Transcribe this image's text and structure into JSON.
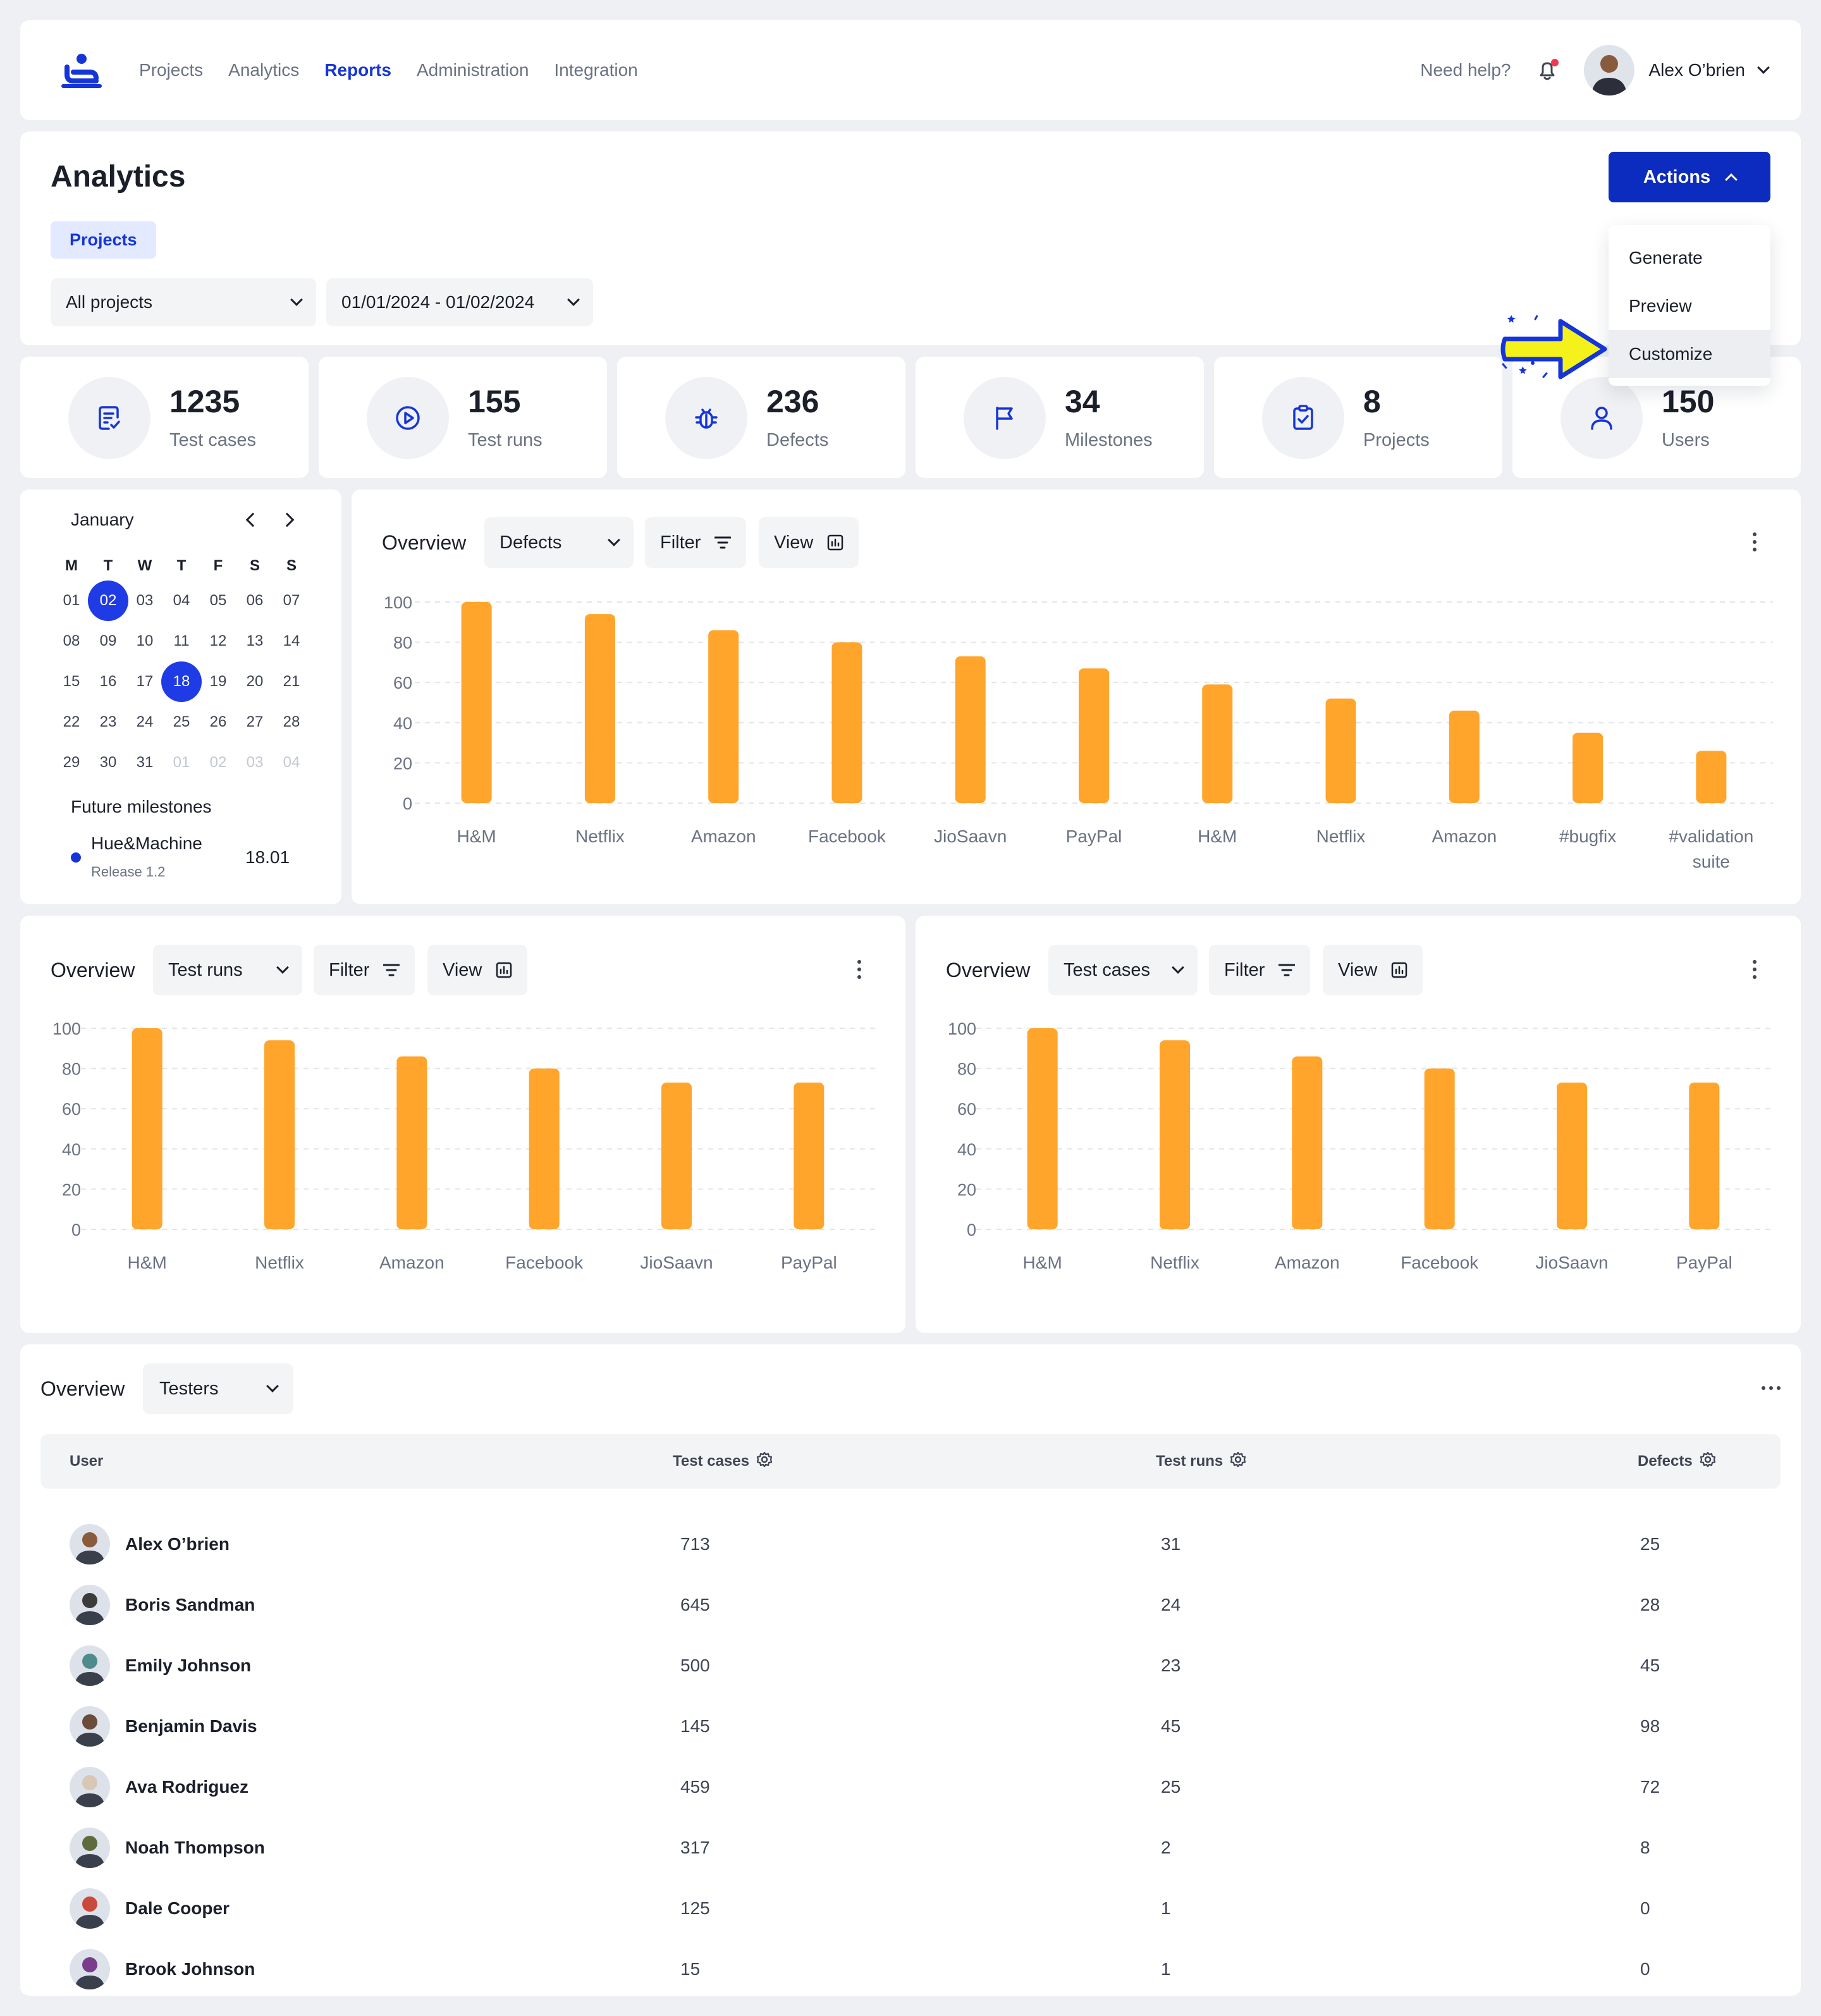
{
  "nav": {
    "links": [
      "Projects",
      "Analytics",
      "Reports",
      "Administration",
      "Integration"
    ],
    "active": "Reports",
    "help": "Need help?",
    "user": "Alex O’brien"
  },
  "header": {
    "title": "Analytics",
    "tag": "Projects",
    "project_select": "All projects",
    "date_range": "01/01/2024 - 01/02/2024",
    "actions_label": "Actions",
    "actions_menu": [
      "Generate",
      "Preview",
      "Customize"
    ],
    "actions_highlighted": "Customize"
  },
  "stats": [
    {
      "value": "1235",
      "label": "Test cases",
      "icon": "test-case-icon"
    },
    {
      "value": "155",
      "label": "Test runs",
      "icon": "play-icon"
    },
    {
      "value": "236",
      "label": "Defects",
      "icon": "bug-icon"
    },
    {
      "value": "34",
      "label": "Milestones",
      "icon": "flag-icon"
    },
    {
      "value": "8",
      "label": "Projects",
      "icon": "clipboard-check-icon"
    },
    {
      "value": "150",
      "label": "Users",
      "icon": "user-icon"
    }
  ],
  "calendar": {
    "month": "January",
    "weekdays": [
      "M",
      "T",
      "W",
      "T",
      "F",
      "S",
      "S"
    ],
    "days": [
      "01",
      "02",
      "03",
      "04",
      "05",
      "06",
      "07",
      "08",
      "09",
      "10",
      "11",
      "12",
      "13",
      "14",
      "15",
      "16",
      "17",
      "18",
      "19",
      "20",
      "21",
      "22",
      "23",
      "24",
      "25",
      "26",
      "27",
      "28",
      "29",
      "30",
      "31",
      "01",
      "02",
      "03",
      "04"
    ],
    "dim_from_index": 31,
    "selected": [
      "02",
      "18"
    ],
    "milestones_title": "Future milestones",
    "milestone_name": "Hue&Machine",
    "milestone_sub": "Release 1.2",
    "milestone_date": "18.01"
  },
  "panels": {
    "overview_label": "Overview",
    "filter_label": "Filter",
    "view_label": "View",
    "chart1_select": "Defects",
    "chart2_select": "Test runs",
    "chart3_select": "Test cases"
  },
  "chart_data": [
    {
      "type": "bar",
      "categories": [
        "H&M",
        "Netflix",
        "Amazon",
        "Facebook",
        "JioSaavn",
        "PayPal",
        "H&M",
        "Netflix",
        "Amazon",
        "#bugfix",
        "#validationsuite"
      ],
      "values": [
        100,
        94,
        86,
        80,
        73,
        67,
        59,
        52,
        46,
        35,
        26
      ],
      "ylim": [
        0,
        100
      ],
      "yticks": [
        0,
        20,
        40,
        60,
        80,
        100
      ],
      "grid": true,
      "color": "#ffa52b"
    },
    {
      "type": "bar",
      "categories": [
        "H&M",
        "Netflix",
        "Amazon",
        "Facebook",
        "JioSaavn",
        "PayPal"
      ],
      "values": [
        100,
        94,
        86,
        80,
        73,
        73
      ],
      "ylim": [
        0,
        100
      ],
      "yticks": [
        0,
        20,
        40,
        60,
        80,
        100
      ],
      "grid": true,
      "color": "#ffa52b"
    },
    {
      "type": "bar",
      "categories": [
        "H&M",
        "Netflix",
        "Amazon",
        "Facebook",
        "JioSaavn",
        "PayPal"
      ],
      "values": [
        100,
        94,
        86,
        80,
        73,
        73
      ],
      "ylim": [
        0,
        100
      ],
      "yticks": [
        0,
        20,
        40,
        60,
        80,
        100
      ],
      "grid": true,
      "color": "#ffa52b"
    }
  ],
  "testers": {
    "select": "Testers",
    "columns": [
      "User",
      "Test cases",
      "Test runs",
      "Defects"
    ],
    "rows": [
      {
        "user": "Alex O’brien",
        "cases": "713",
        "runs": "31",
        "defects": "25",
        "avatar": "#8a5a3c"
      },
      {
        "user": "Boris Sandman",
        "cases": "645",
        "runs": "24",
        "defects": "28",
        "avatar": "#3b3b3b"
      },
      {
        "user": "Emily Johnson",
        "cases": "500",
        "runs": "23",
        "defects": "45",
        "avatar": "#4f8a8c"
      },
      {
        "user": "Benjamin Davis",
        "cases": "145",
        "runs": "45",
        "defects": "98",
        "avatar": "#6b4b3a"
      },
      {
        "user": "Ava Rodriguez",
        "cases": "459",
        "runs": "25",
        "defects": "72",
        "avatar": "#d9c7b5"
      },
      {
        "user": "Noah Thompson",
        "cases": "317",
        "runs": "2",
        "defects": "8",
        "avatar": "#5e6b3c"
      },
      {
        "user": "Dale Cooper",
        "cases": "125",
        "runs": "1",
        "defects": "0",
        "avatar": "#c94a3a"
      },
      {
        "user": "Brook Johnson",
        "cases": "15",
        "runs": "1",
        "defects": "0",
        "avatar": "#7a3d8c"
      }
    ]
  },
  "colors": {
    "accent": "#1535d9",
    "primary_button": "#0c2bbf",
    "bar": "#ffa52b",
    "notification": "#f2384f",
    "pointer_arrow": "#f4f21a"
  }
}
